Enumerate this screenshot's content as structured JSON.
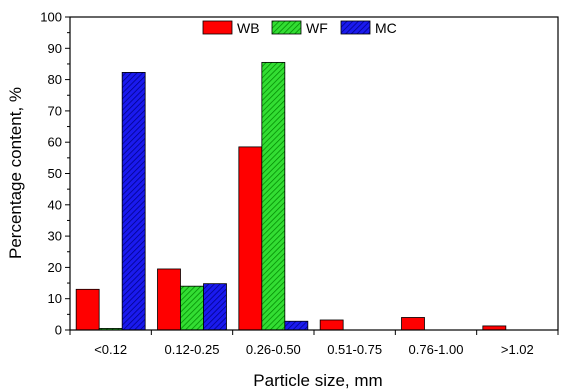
{
  "chart_data": {
    "type": "bar",
    "title": "",
    "xlabel": "Particle size, mm",
    "ylabel": "Percentage content, %",
    "categories": [
      "<0.12",
      "0.12-0.25",
      "0.26-0.50",
      "0.51-0.75",
      "0.76-1.00",
      ">1.02"
    ],
    "ylim": [
      0,
      100
    ],
    "yticks": [
      "0",
      "10",
      "20",
      "30",
      "40",
      "50",
      "60",
      "70",
      "80",
      "90",
      "100"
    ],
    "grid": false,
    "legend_position": "top-center",
    "series": [
      {
        "name": "WB",
        "color": "#ff0000",
        "pattern": "solid",
        "values": [
          13,
          19.5,
          58.5,
          3.2,
          4.0,
          1.3
        ]
      },
      {
        "name": "WF",
        "color": "#00cc00",
        "pattern": "hatched",
        "values": [
          0.5,
          14,
          85.5,
          0,
          0,
          0
        ]
      },
      {
        "name": "MC",
        "color": "#0000cc",
        "pattern": "hatched",
        "values": [
          82.3,
          14.8,
          2.8,
          0,
          0,
          0
        ]
      }
    ]
  }
}
